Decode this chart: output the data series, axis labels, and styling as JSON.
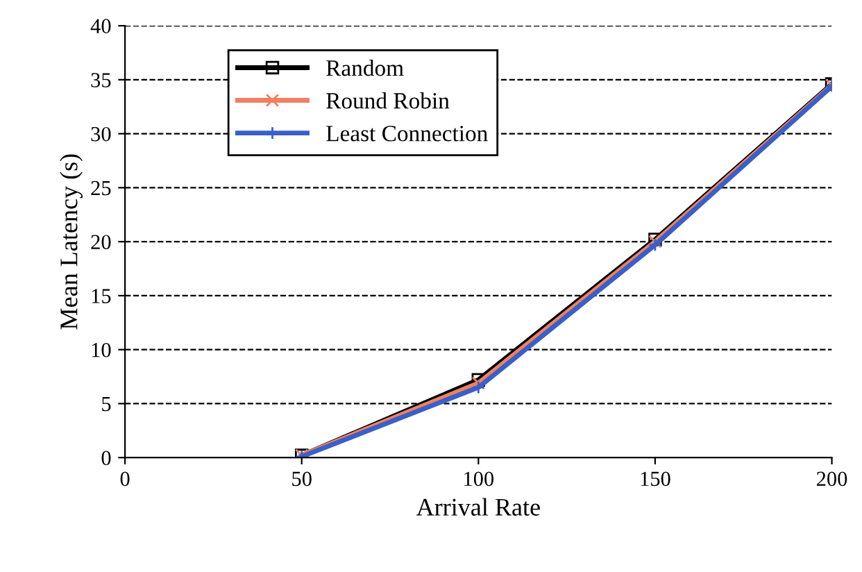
{
  "chart_data": {
    "type": "line",
    "xlabel": "Arrival Rate",
    "ylabel": "Mean Latency (s)",
    "x": [
      50,
      100,
      150,
      200
    ],
    "series": [
      {
        "name": "Random",
        "color": "#000000",
        "marker": "square",
        "values": [
          0.2,
          7.2,
          20.2,
          34.6
        ]
      },
      {
        "name": "Round Robin",
        "color": "#f08060",
        "marker": "cross",
        "values": [
          0.2,
          6.9,
          20.0,
          34.5
        ]
      },
      {
        "name": "Least Connection",
        "color": "#3a5fc8",
        "marker": "plus",
        "values": [
          0.1,
          6.5,
          19.7,
          34.4
        ]
      }
    ],
    "xlim": [
      0,
      200
    ],
    "xticks": [
      0,
      50,
      100,
      150,
      200
    ],
    "ylim": [
      0,
      40
    ],
    "yticks": [
      0,
      5,
      10,
      15,
      20,
      25,
      30,
      35,
      40
    ],
    "grid": "y",
    "legend": "top left",
    "line_style": "solid"
  }
}
